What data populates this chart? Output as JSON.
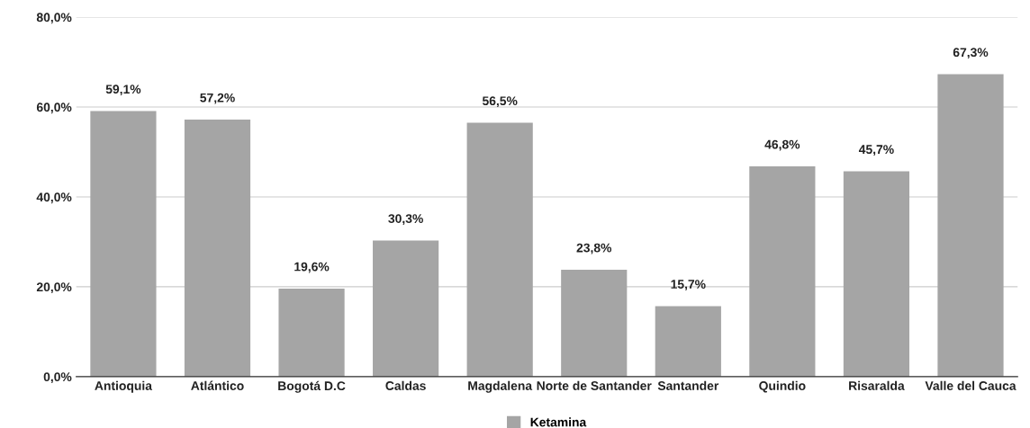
{
  "chart_data": {
    "type": "bar",
    "categories": [
      "Antioquia",
      "Atlántico",
      "Bogotá D.C",
      "Caldas",
      "Magdalena",
      "Norte de Santander",
      "Santander",
      "Quindio",
      "Risaralda",
      "Valle del Cauca"
    ],
    "series": [
      {
        "name": "Ketamina",
        "color": "#a5a5a5",
        "values": [
          59.1,
          57.2,
          19.6,
          30.3,
          56.5,
          23.8,
          15.7,
          46.8,
          45.7,
          67.3
        ],
        "value_labels": [
          "59,1%",
          "57,2%",
          "19,6%",
          "30,3%",
          "56,5%",
          "23,8%",
          "15,7%",
          "46,8%",
          "45,7%",
          "67,3%"
        ]
      }
    ],
    "ylim": [
      0,
      80
    ],
    "yticks": [
      {
        "value": 0,
        "label": "0,0%"
      },
      {
        "value": 20,
        "label": "20,0%"
      },
      {
        "value": 40,
        "label": "40,0%"
      },
      {
        "value": 60,
        "label": "60,0%"
      },
      {
        "value": 80,
        "label": "80,0%"
      }
    ],
    "grid": "y",
    "legend": "bottom"
  }
}
